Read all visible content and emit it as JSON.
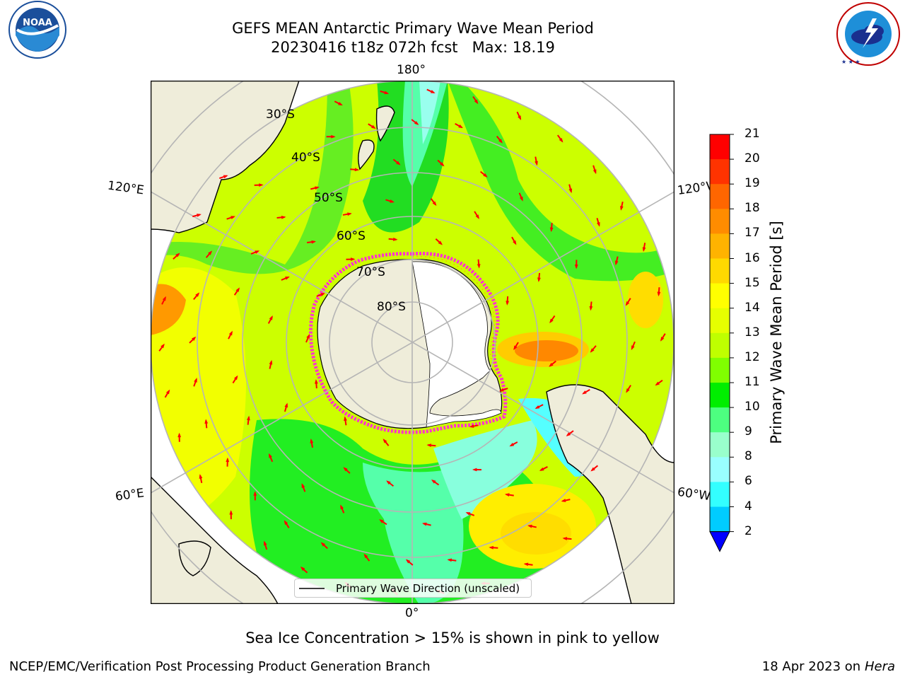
{
  "title": {
    "line1": "GEFS MEAN Antarctic Primary Wave Mean Period",
    "line2": "20230416 t18z 072h fcst   Max: 18.19"
  },
  "logos": {
    "noaa_text": "NOAA",
    "noaa_ring_text": "NATIONAL OCEANIC AND ATMOSPHERIC ADMINISTRATION · U.S. DEPARTMENT OF COMMERCE",
    "nws_ring_text": "NATIONAL WEATHER SERVICE"
  },
  "map": {
    "longitude_labels": {
      "top": "180°",
      "bottom": "0°",
      "upper_left": "120°E",
      "upper_right": "120°W",
      "lower_left": "60°E",
      "lower_right": "60°W"
    },
    "latitude_labels": [
      "30°S",
      "40°S",
      "50°S",
      "60°S",
      "70°S",
      "80°S"
    ],
    "colors": {
      "land": "#efedda",
      "arrow": "#ff0000",
      "grid": "#b5b5b5",
      "ice_edge": "#ff33cc"
    }
  },
  "legend": {
    "label": "Primary Wave Direction (unscaled)"
  },
  "colorbar": {
    "label": "Primary Wave Mean Period [s]",
    "ticks": [
      "21",
      "20",
      "19",
      "18",
      "17",
      "16",
      "15",
      "14",
      "13",
      "12",
      "11",
      "10",
      "9",
      "8",
      "6",
      "4",
      "2"
    ],
    "colors": [
      "#ff0000",
      "#ff3300",
      "#ff6600",
      "#ff8c00",
      "#ffb300",
      "#ffd900",
      "#ffff00",
      "#e6ff00",
      "#bfff00",
      "#80ff00",
      "#00ee00",
      "#4dff80",
      "#99ffcc",
      "#99ffff",
      "#33ffff",
      "#00ccff",
      "#0066ff"
    ],
    "extend_color": "#0000ff"
  },
  "caption": "Sea Ice Concentration > 15% is shown in pink to yellow",
  "footer": {
    "left": "NCEP/EMC/Verification Post Processing Product Generation Branch",
    "right_date": "18 Apr 2023 on ",
    "right_host": "Hera"
  }
}
